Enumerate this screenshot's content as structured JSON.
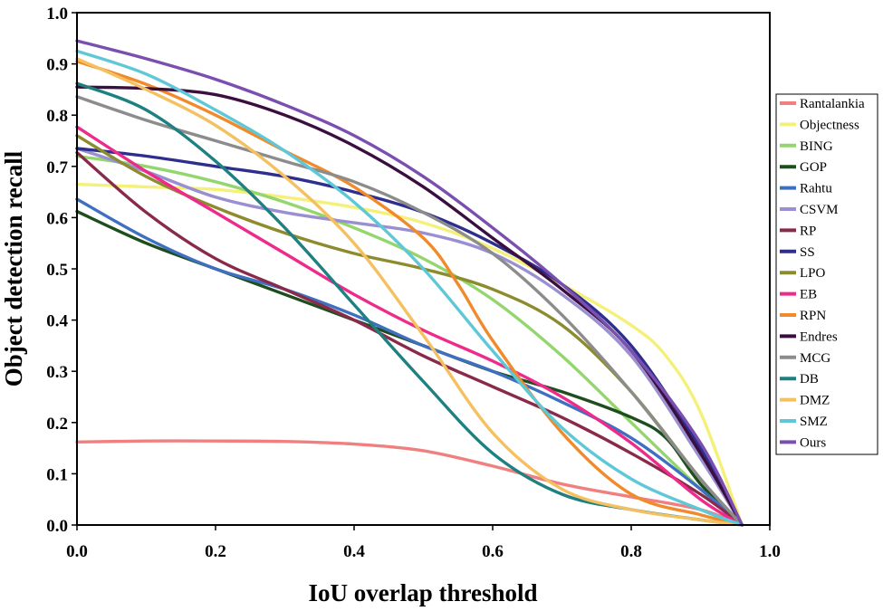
{
  "chart_data": {
    "type": "line",
    "title": "",
    "xlabel": "IoU overlap threshold",
    "ylabel": "Object detection recall",
    "xlim": [
      0.0,
      1.0
    ],
    "ylim": [
      0.0,
      1.0
    ],
    "xticks": [
      "0.0",
      "0.2",
      "0.4",
      "0.6",
      "0.8",
      "1.0"
    ],
    "yticks": [
      "0.0",
      "0.1",
      "0.2",
      "0.3",
      "0.4",
      "0.5",
      "0.6",
      "0.7",
      "0.8",
      "0.9",
      "1.0"
    ],
    "grid": false,
    "legend_position": "right",
    "series": [
      {
        "name": "Rantalankia",
        "color": "#f08080",
        "x": [
          0.0,
          0.1,
          0.2,
          0.3,
          0.4,
          0.5,
          0.6,
          0.7,
          0.8,
          0.9,
          0.96
        ],
        "y": [
          0.162,
          0.164,
          0.164,
          0.163,
          0.158,
          0.145,
          0.115,
          0.08,
          0.055,
          0.03,
          0.0
        ]
      },
      {
        "name": "Objectness",
        "color": "#f5f078",
        "x": [
          0.0,
          0.1,
          0.2,
          0.3,
          0.4,
          0.5,
          0.6,
          0.7,
          0.8,
          0.85,
          0.9,
          0.96
        ],
        "y": [
          0.665,
          0.66,
          0.655,
          0.64,
          0.62,
          0.59,
          0.54,
          0.47,
          0.39,
          0.33,
          0.22,
          0.0
        ]
      },
      {
        "name": "BING",
        "color": "#94d66e",
        "x": [
          0.0,
          0.1,
          0.2,
          0.3,
          0.4,
          0.5,
          0.6,
          0.7,
          0.8,
          0.9,
          0.96
        ],
        "y": [
          0.72,
          0.7,
          0.67,
          0.63,
          0.58,
          0.52,
          0.44,
          0.33,
          0.2,
          0.07,
          0.0
        ]
      },
      {
        "name": "GOP",
        "color": "#1e4d1e",
        "x": [
          0.0,
          0.1,
          0.2,
          0.3,
          0.4,
          0.5,
          0.6,
          0.7,
          0.8,
          0.85,
          0.9,
          0.96
        ],
        "y": [
          0.612,
          0.55,
          0.5,
          0.45,
          0.4,
          0.35,
          0.3,
          0.26,
          0.21,
          0.17,
          0.08,
          0.0
        ]
      },
      {
        "name": "Rahtu",
        "color": "#3f6fc0",
        "x": [
          0.0,
          0.1,
          0.2,
          0.3,
          0.4,
          0.5,
          0.6,
          0.7,
          0.8,
          0.9,
          0.96
        ],
        "y": [
          0.636,
          0.56,
          0.5,
          0.46,
          0.41,
          0.35,
          0.3,
          0.24,
          0.17,
          0.07,
          0.0
        ]
      },
      {
        "name": "CSVM",
        "color": "#9a8fd0",
        "x": [
          0.0,
          0.1,
          0.2,
          0.3,
          0.4,
          0.5,
          0.6,
          0.7,
          0.8,
          0.9,
          0.96
        ],
        "y": [
          0.735,
          0.69,
          0.64,
          0.61,
          0.59,
          0.57,
          0.53,
          0.45,
          0.33,
          0.13,
          0.0
        ]
      },
      {
        "name": "RP",
        "color": "#8a2a4a",
        "x": [
          0.0,
          0.1,
          0.2,
          0.3,
          0.4,
          0.5,
          0.6,
          0.7,
          0.8,
          0.9,
          0.96
        ],
        "y": [
          0.727,
          0.61,
          0.52,
          0.46,
          0.4,
          0.33,
          0.27,
          0.21,
          0.14,
          0.06,
          0.0
        ]
      },
      {
        "name": "SS",
        "color": "#2e2f8c",
        "x": [
          0.0,
          0.1,
          0.2,
          0.3,
          0.4,
          0.5,
          0.6,
          0.7,
          0.8,
          0.9,
          0.96
        ],
        "y": [
          0.735,
          0.72,
          0.7,
          0.68,
          0.65,
          0.61,
          0.55,
          0.47,
          0.35,
          0.15,
          0.0
        ]
      },
      {
        "name": "LPO",
        "color": "#8c8c2e",
        "x": [
          0.0,
          0.1,
          0.2,
          0.3,
          0.4,
          0.5,
          0.6,
          0.7,
          0.8,
          0.9,
          0.96
        ],
        "y": [
          0.76,
          0.68,
          0.62,
          0.57,
          0.53,
          0.5,
          0.46,
          0.39,
          0.26,
          0.09,
          0.0
        ]
      },
      {
        "name": "EB",
        "color": "#ee2a8a",
        "x": [
          0.0,
          0.1,
          0.2,
          0.3,
          0.4,
          0.5,
          0.6,
          0.7,
          0.8,
          0.9,
          0.96
        ],
        "y": [
          0.777,
          0.69,
          0.61,
          0.53,
          0.45,
          0.38,
          0.32,
          0.25,
          0.16,
          0.05,
          0.0
        ]
      },
      {
        "name": "RPN",
        "color": "#f08a2a",
        "x": [
          0.0,
          0.1,
          0.2,
          0.3,
          0.4,
          0.5,
          0.55,
          0.6,
          0.7,
          0.8,
          0.9,
          0.96
        ],
        "y": [
          0.905,
          0.86,
          0.8,
          0.73,
          0.66,
          0.56,
          0.47,
          0.36,
          0.18,
          0.06,
          0.02,
          0.0
        ]
      },
      {
        "name": "Endres",
        "color": "#3a0f3f",
        "x": [
          0.0,
          0.1,
          0.2,
          0.3,
          0.4,
          0.5,
          0.6,
          0.7,
          0.8,
          0.9,
          0.96
        ],
        "y": [
          0.855,
          0.852,
          0.84,
          0.8,
          0.74,
          0.66,
          0.56,
          0.46,
          0.34,
          0.14,
          0.0
        ]
      },
      {
        "name": "MCG",
        "color": "#8c8c8c",
        "x": [
          0.0,
          0.1,
          0.2,
          0.3,
          0.4,
          0.5,
          0.6,
          0.7,
          0.8,
          0.9,
          0.96
        ],
        "y": [
          0.836,
          0.79,
          0.75,
          0.71,
          0.67,
          0.61,
          0.53,
          0.41,
          0.26,
          0.09,
          0.0
        ]
      },
      {
        "name": "DB",
        "color": "#1e8080",
        "x": [
          0.0,
          0.1,
          0.2,
          0.3,
          0.4,
          0.5,
          0.6,
          0.7,
          0.8,
          0.9,
          0.96
        ],
        "y": [
          0.862,
          0.81,
          0.71,
          0.58,
          0.43,
          0.28,
          0.14,
          0.06,
          0.03,
          0.01,
          0.0
        ]
      },
      {
        "name": "DMZ",
        "color": "#f5c060",
        "x": [
          0.0,
          0.1,
          0.2,
          0.3,
          0.4,
          0.5,
          0.6,
          0.7,
          0.8,
          0.9,
          0.96
        ],
        "y": [
          0.91,
          0.85,
          0.78,
          0.68,
          0.55,
          0.37,
          0.18,
          0.07,
          0.03,
          0.01,
          0.0
        ]
      },
      {
        "name": "SMZ",
        "color": "#5fc8d8",
        "x": [
          0.0,
          0.1,
          0.2,
          0.3,
          0.4,
          0.5,
          0.6,
          0.7,
          0.8,
          0.9,
          0.96
        ],
        "y": [
          0.925,
          0.88,
          0.81,
          0.73,
          0.63,
          0.5,
          0.34,
          0.19,
          0.09,
          0.03,
          0.0
        ]
      },
      {
        "name": "Ours",
        "color": "#7a4fb0",
        "x": [
          0.0,
          0.1,
          0.2,
          0.3,
          0.4,
          0.5,
          0.6,
          0.7,
          0.8,
          0.9,
          0.96
        ],
        "y": [
          0.945,
          0.91,
          0.87,
          0.82,
          0.76,
          0.68,
          0.58,
          0.47,
          0.34,
          0.16,
          0.0
        ]
      }
    ]
  }
}
